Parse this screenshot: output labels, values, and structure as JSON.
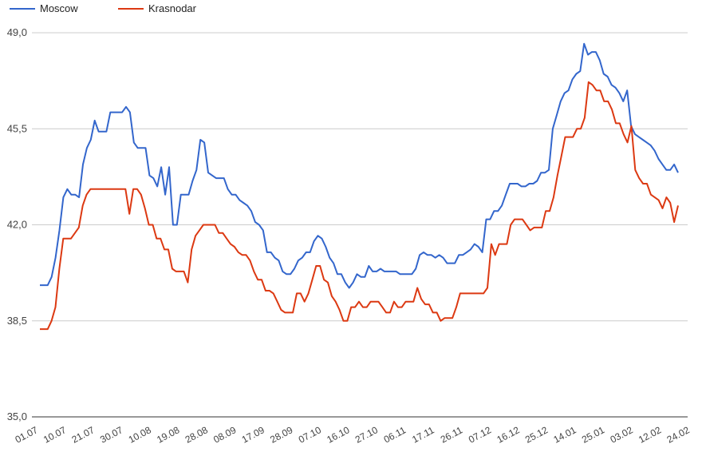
{
  "chart_data": {
    "type": "line",
    "title": "",
    "xlabel": "",
    "ylabel": "",
    "ylim": [
      35.0,
      49.0
    ],
    "yticks": [
      "35,0",
      "38,5",
      "42,0",
      "45,5",
      "49,0"
    ],
    "grid": true,
    "legend": "top-left",
    "x_ticks": [
      "01.07",
      "10.07",
      "21.07",
      "30.07",
      "10.08",
      "19.08",
      "28.08",
      "08.09",
      "17.09",
      "28.09",
      "07.10",
      "16.10",
      "27.10",
      "06.11",
      "17.11",
      "26.11",
      "07.12",
      "16.12",
      "25.12",
      "14.01",
      "25.01",
      "03.02",
      "12.02",
      "24.02"
    ],
    "series": [
      {
        "name": "Moscow",
        "color": "#3366cc",
        "values": [
          39.8,
          39.8,
          39.8,
          40.1,
          40.8,
          41.8,
          43.0,
          43.3,
          43.1,
          43.1,
          43.0,
          44.2,
          44.8,
          45.1,
          45.8,
          45.4,
          45.4,
          45.4,
          46.1,
          46.1,
          46.1,
          46.1,
          46.3,
          46.1,
          45.0,
          44.8,
          44.8,
          44.8,
          43.8,
          43.7,
          43.4,
          44.1,
          43.1,
          44.1,
          42.0,
          42.0,
          43.1,
          43.1,
          43.1,
          43.6,
          44.0,
          45.1,
          45.0,
          43.9,
          43.8,
          43.7,
          43.7,
          43.7,
          43.3,
          43.1,
          43.1,
          42.9,
          42.8,
          42.7,
          42.5,
          42.1,
          42.0,
          41.8,
          41.0,
          41.0,
          40.8,
          40.7,
          40.3,
          40.2,
          40.2,
          40.4,
          40.7,
          40.8,
          41.0,
          41.0,
          41.4,
          41.6,
          41.5,
          41.2,
          40.8,
          40.6,
          40.2,
          40.2,
          39.9,
          39.7,
          39.9,
          40.2,
          40.1,
          40.1,
          40.5,
          40.3,
          40.3,
          40.4,
          40.3,
          40.3,
          40.3,
          40.3,
          40.2,
          40.2,
          40.2,
          40.2,
          40.4,
          40.9,
          41.0,
          40.9,
          40.9,
          40.8,
          40.9,
          40.8,
          40.6,
          40.6,
          40.6,
          40.9,
          40.9,
          41.0,
          41.1,
          41.3,
          41.2,
          41.0,
          42.2,
          42.2,
          42.5,
          42.5,
          42.7,
          43.1,
          43.5,
          43.5,
          43.5,
          43.4,
          43.4,
          43.5,
          43.5,
          43.6,
          43.9,
          43.9,
          44.0,
          45.5,
          46.0,
          46.5,
          46.8,
          46.9,
          47.3,
          47.5,
          47.6,
          48.6,
          48.2,
          48.3,
          48.3,
          48.0,
          47.5,
          47.4,
          47.1,
          47.0,
          46.8,
          46.5,
          46.9,
          45.6,
          45.3,
          45.2,
          45.1,
          45.0,
          44.9,
          44.7,
          44.4,
          44.2,
          44.0,
          44.0,
          44.2,
          43.9
        ]
      },
      {
        "name": "Krasnodar",
        "color": "#dc3912",
        "values": [
          38.2,
          38.2,
          38.2,
          38.5,
          39.0,
          40.4,
          41.5,
          41.5,
          41.5,
          41.7,
          41.9,
          42.7,
          43.1,
          43.3,
          43.3,
          43.3,
          43.3,
          43.3,
          43.3,
          43.3,
          43.3,
          43.3,
          43.3,
          42.4,
          43.3,
          43.3,
          43.1,
          42.6,
          42.0,
          42.0,
          41.5,
          41.5,
          41.1,
          41.1,
          40.4,
          40.3,
          40.3,
          40.3,
          39.9,
          41.1,
          41.6,
          41.8,
          42.0,
          42.0,
          42.0,
          42.0,
          41.7,
          41.7,
          41.5,
          41.3,
          41.2,
          41.0,
          40.9,
          40.9,
          40.7,
          40.3,
          40.0,
          40.0,
          39.6,
          39.6,
          39.5,
          39.2,
          38.9,
          38.8,
          38.8,
          38.8,
          39.5,
          39.5,
          39.2,
          39.5,
          40.0,
          40.5,
          40.5,
          40.0,
          39.9,
          39.4,
          39.2,
          38.9,
          38.5,
          38.5,
          39.0,
          39.0,
          39.2,
          39.0,
          39.0,
          39.2,
          39.2,
          39.2,
          39.0,
          38.8,
          38.8,
          39.2,
          39.0,
          39.0,
          39.2,
          39.2,
          39.2,
          39.7,
          39.3,
          39.1,
          39.1,
          38.8,
          38.8,
          38.5,
          38.6,
          38.6,
          38.6,
          39.0,
          39.5,
          39.5,
          39.5,
          39.5,
          39.5,
          39.5,
          39.5,
          39.7,
          41.3,
          40.9,
          41.3,
          41.3,
          41.3,
          42.0,
          42.2,
          42.2,
          42.2,
          42.0,
          41.8,
          41.9,
          41.9,
          41.9,
          42.5,
          42.5,
          43.0,
          43.8,
          44.5,
          45.2,
          45.2,
          45.2,
          45.5,
          45.5,
          45.9,
          47.2,
          47.1,
          46.9,
          46.9,
          46.5,
          46.5,
          46.2,
          45.7,
          45.7,
          45.3,
          45.0,
          45.6,
          44.0,
          43.7,
          43.5,
          43.5,
          43.1,
          43.0,
          42.9,
          42.6,
          43.0,
          42.8,
          42.1,
          42.7
        ]
      }
    ]
  }
}
